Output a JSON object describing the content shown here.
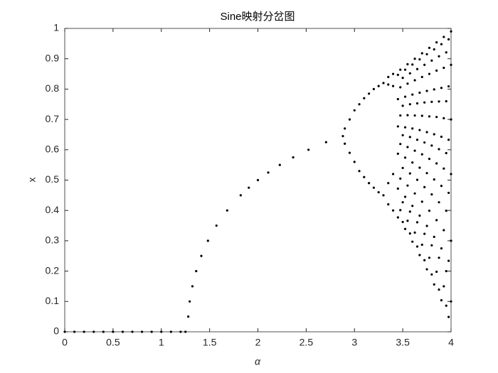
{
  "chart_data": {
    "type": "scatter",
    "title": "Sine映射分岔图",
    "xlabel": "α",
    "ylabel": "x",
    "xlim": [
      0,
      4
    ],
    "ylim": [
      0,
      1
    ],
    "xticks": [
      0,
      0.5,
      1,
      1.5,
      2,
      2.5,
      3,
      3.5,
      4
    ],
    "yticks": [
      0,
      0.1,
      0.2,
      0.3,
      0.4,
      0.5,
      0.6,
      0.7,
      0.8,
      0.9,
      1
    ],
    "series": [
      {
        "color": "#000000",
        "x": [
          0,
          0.1,
          0.2,
          0.3,
          0.4,
          0.5,
          0.6,
          0.7,
          0.8,
          0.9,
          1.0,
          1.1,
          1.2,
          1.25,
          1.279,
          1.294,
          1.322,
          1.361,
          1.414,
          1.483,
          1.571,
          1.682,
          1.822,
          1.906,
          2.0,
          2.107,
          2.227,
          2.365,
          2.524,
          2.706,
          2.88,
          2.9,
          2.9,
          2.95,
          2.95,
          3.0,
          3.0,
          3.05,
          3.05,
          3.1,
          3.1,
          3.15,
          3.15,
          3.2,
          3.2,
          3.25,
          3.25,
          3.3,
          3.3,
          3.35,
          3.35,
          3.35,
          3.35,
          3.4,
          3.4,
          3.4,
          3.4,
          3.45,
          3.45,
          3.45,
          3.45,
          3.45,
          3.45,
          3.475,
          3.475,
          3.475,
          3.475,
          3.475,
          3.475,
          3.5,
          3.5,
          3.5,
          3.5,
          3.5,
          3.5,
          3.525,
          3.525,
          3.525,
          3.525,
          3.525,
          3.525,
          3.55,
          3.55,
          3.55,
          3.55,
          3.55,
          3.55,
          3.575,
          3.575,
          3.575,
          3.575,
          3.575,
          3.575,
          3.6,
          3.6,
          3.6,
          3.6,
          3.6,
          3.6,
          3.625,
          3.625,
          3.625,
          3.625,
          3.625,
          3.625,
          3.65,
          3.65,
          3.65,
          3.65,
          3.65,
          3.65,
          3.675,
          3.675,
          3.675,
          3.675,
          3.675,
          3.675,
          3.7,
          3.7,
          3.7,
          3.7,
          3.7,
          3.7,
          3.725,
          3.725,
          3.725,
          3.725,
          3.725,
          3.725,
          3.75,
          3.75,
          3.75,
          3.75,
          3.75,
          3.75,
          3.775,
          3.775,
          3.775,
          3.775,
          3.775,
          3.775,
          3.8,
          3.8,
          3.8,
          3.8,
          3.8,
          3.8,
          3.825,
          3.825,
          3.825,
          3.825,
          3.825,
          3.825,
          3.85,
          3.85,
          3.85,
          3.85,
          3.85,
          3.85,
          3.875,
          3.875,
          3.875,
          3.875,
          3.875,
          3.875,
          3.9,
          3.9,
          3.9,
          3.9,
          3.9,
          3.9,
          3.925,
          3.925,
          3.925,
          3.925,
          3.925,
          3.925,
          3.95,
          3.95,
          3.95,
          3.95,
          3.95,
          3.95,
          3.975,
          3.975,
          3.975,
          3.975,
          3.975,
          3.975,
          4.0,
          4.0,
          4.0,
          4.0,
          4.0,
          4.0
        ],
        "values": [
          0,
          0,
          0,
          0,
          0,
          0,
          0,
          0,
          0,
          0,
          0,
          0,
          0,
          0,
          0.05,
          0.1,
          0.15,
          0.2,
          0.25,
          0.3,
          0.35,
          0.4,
          0.45,
          0.475,
          0.5,
          0.525,
          0.55,
          0.575,
          0.6,
          0.625,
          0.645,
          0.67,
          0.62,
          0.7,
          0.59,
          0.73,
          0.56,
          0.75,
          0.53,
          0.77,
          0.51,
          0.785,
          0.49,
          0.8,
          0.475,
          0.81,
          0.46,
          0.82,
          0.45,
          0.815,
          0.84,
          0.42,
          0.49,
          0.81,
          0.85,
          0.4,
          0.52,
          0.377,
          0.472,
          0.587,
          0.677,
          0.767,
          0.847,
          0.401,
          0.505,
          0.619,
          0.713,
          0.806,
          0.864,
          0.362,
          0.427,
          0.54,
          0.648,
          0.745,
          0.837,
          0.339,
          0.445,
          0.574,
          0.674,
          0.775,
          0.864,
          0.366,
          0.482,
          0.609,
          0.714,
          0.818,
          0.882,
          0.324,
          0.396,
          0.522,
          0.642,
          0.75,
          0.852,
          0.297,
          0.415,
          0.558,
          0.67,
          0.782,
          0.881,
          0.327,
          0.456,
          0.597,
          0.713,
          0.829,
          0.9,
          0.281,
          0.361,
          0.501,
          0.633,
          0.753,
          0.866,
          0.253,
          0.383,
          0.541,
          0.665,
          0.788,
          0.898,
          0.287,
          0.429,
          0.585,
          0.712,
          0.84,
          0.918,
          0.236,
          0.323,
          0.477,
          0.624,
          0.756,
          0.88,
          0.206,
          0.349,
          0.523,
          0.658,
          0.794,
          0.915,
          0.244,
          0.399,
          0.57,
          0.71,
          0.85,
          0.936,
          0.189,
          0.285,
          0.453,
          0.614,
          0.758,
          0.894,
          0.156,
          0.313,
          0.502,
          0.651,
          0.799,
          0.931,
          0.198,
          0.368,
          0.555,
          0.708,
          0.861,
          0.954,
          0.139,
          0.244,
          0.427,
          0.602,
          0.759,
          0.908,
          0.104,
          0.275,
          0.481,
          0.643,
          0.804,
          0.948,
          0.15,
          0.335,
          0.538,
          0.704,
          0.87,
          0.972,
          0.086,
          0.2,
          0.399,
          0.589,
          0.76,
          0.921,
          0.049,
          0.234,
          0.458,
          0.633,
          0.809,
          0.964,
          0.1,
          0.3,
          0.52,
          0.7,
          0.88,
          0.99
        ]
      }
    ]
  }
}
